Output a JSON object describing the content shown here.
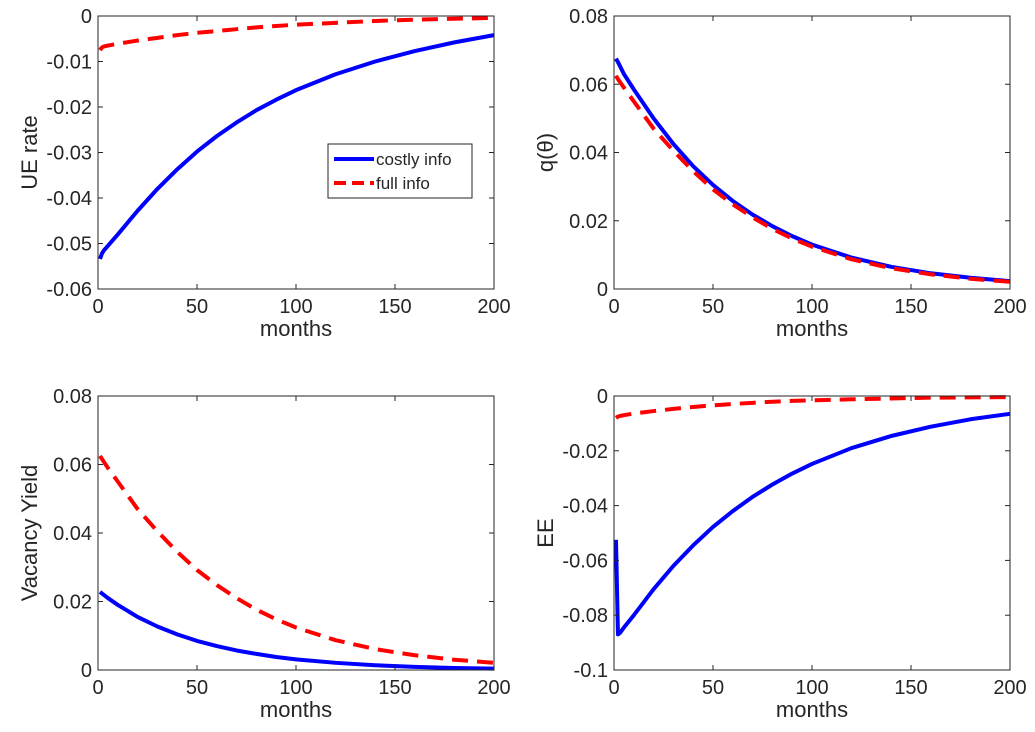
{
  "chart_data": [
    {
      "type": "line",
      "title": "",
      "xlabel": "months",
      "ylabel": "UE rate",
      "xlim": [
        0,
        200
      ],
      "ylim": [
        -0.06,
        0
      ],
      "xticks": [
        0,
        50,
        100,
        150,
        200
      ],
      "yticks": [
        -0.06,
        -0.05,
        -0.04,
        -0.03,
        -0.02,
        -0.01,
        0
      ],
      "xtick_labels": [
        "0",
        "50",
        "100",
        "150",
        "200"
      ],
      "ytick_labels": [
        "-0.06",
        "-0.05",
        "-0.04",
        "-0.03",
        "-0.02",
        "-0.01",
        "0"
      ],
      "grid": false,
      "legend": {
        "position": "center-right",
        "entries": [
          "costly info",
          "full info"
        ]
      },
      "series": [
        {
          "name": "costly info",
          "color": "#0000ff",
          "style": "solid",
          "x": [
            1,
            2,
            3,
            5,
            10,
            20,
            30,
            40,
            50,
            60,
            70,
            80,
            90,
            100,
            120,
            140,
            160,
            180,
            200
          ],
          "y": [
            -0.0534,
            -0.0522,
            -0.0515,
            -0.0505,
            -0.048,
            -0.0428,
            -0.038,
            -0.0337,
            -0.0298,
            -0.0264,
            -0.0234,
            -0.0207,
            -0.0184,
            -0.0163,
            -0.0128,
            -0.01,
            -0.0077,
            -0.0058,
            -0.0042
          ]
        },
        {
          "name": "full info",
          "color": "#ff0000",
          "style": "dashed",
          "x": [
            1,
            2,
            3,
            5,
            10,
            20,
            30,
            40,
            50,
            60,
            70,
            80,
            90,
            100,
            120,
            140,
            160,
            180,
            200
          ],
          "y": [
            -0.0075,
            -0.0069,
            -0.0067,
            -0.0065,
            -0.0061,
            -0.0054,
            -0.0048,
            -0.0042,
            -0.0037,
            -0.0033,
            -0.0029,
            -0.0025,
            -0.0022,
            -0.0019,
            -0.0015,
            -0.0011,
            -0.0008,
            -0.0006,
            -0.0004
          ]
        }
      ]
    },
    {
      "type": "line",
      "title": "",
      "xlabel": "months",
      "ylabel": "q(θ)",
      "xlim": [
        0,
        200
      ],
      "ylim": [
        0,
        0.08
      ],
      "xticks": [
        0,
        50,
        100,
        150,
        200
      ],
      "yticks": [
        0,
        0.02,
        0.04,
        0.06,
        0.08
      ],
      "xtick_labels": [
        "0",
        "50",
        "100",
        "150",
        "200"
      ],
      "ytick_labels": [
        "0",
        "0.02",
        "0.04",
        "0.06",
        "0.08"
      ],
      "grid": false,
      "series": [
        {
          "name": "costly info",
          "color": "#0000ff",
          "style": "solid",
          "x": [
            1,
            2,
            5,
            10,
            20,
            30,
            40,
            50,
            60,
            70,
            80,
            90,
            100,
            120,
            140,
            160,
            180,
            200
          ],
          "y": [
            0.0675,
            0.0665,
            0.063,
            0.0585,
            0.05,
            0.0425,
            0.036,
            0.0305,
            0.0258,
            0.0218,
            0.0184,
            0.0155,
            0.013,
            0.0092,
            0.0065,
            0.0046,
            0.0033,
            0.0023
          ]
        },
        {
          "name": "full info",
          "color": "#ff0000",
          "style": "dashed",
          "x": [
            1,
            2,
            5,
            10,
            20,
            30,
            40,
            50,
            60,
            70,
            80,
            90,
            100,
            120,
            140,
            160,
            180,
            200
          ],
          "y": [
            0.0625,
            0.0615,
            0.059,
            0.055,
            0.047,
            0.0405,
            0.0345,
            0.0292,
            0.0248,
            0.021,
            0.0176,
            0.0148,
            0.0124,
            0.0087,
            0.0061,
            0.0043,
            0.003,
            0.0021
          ]
        }
      ]
    },
    {
      "type": "line",
      "title": "",
      "xlabel": "months",
      "ylabel": "Vacancy Yield",
      "xlim": [
        0,
        200
      ],
      "ylim": [
        0,
        0.08
      ],
      "xticks": [
        0,
        50,
        100,
        150,
        200
      ],
      "yticks": [
        0,
        0.02,
        0.04,
        0.06,
        0.08
      ],
      "xtick_labels": [
        "0",
        "50",
        "100",
        "150",
        "200"
      ],
      "ytick_labels": [
        "0",
        "0.02",
        "0.04",
        "0.06",
        "0.08"
      ],
      "grid": false,
      "series": [
        {
          "name": "costly info",
          "color": "#0000ff",
          "style": "solid",
          "x": [
            1,
            5,
            10,
            20,
            30,
            40,
            50,
            60,
            70,
            80,
            90,
            100,
            120,
            140,
            160,
            180,
            200
          ],
          "y": [
            0.0228,
            0.021,
            0.019,
            0.0155,
            0.0127,
            0.0104,
            0.0085,
            0.007,
            0.0057,
            0.0047,
            0.0038,
            0.0031,
            0.0021,
            0.0014,
            0.0009,
            0.0006,
            0.0004
          ]
        },
        {
          "name": "full info",
          "color": "#ff0000",
          "style": "dashed",
          "x": [
            1,
            5,
            10,
            20,
            30,
            40,
            50,
            60,
            70,
            80,
            90,
            100,
            120,
            140,
            160,
            180,
            200
          ],
          "y": [
            0.0625,
            0.059,
            0.055,
            0.047,
            0.0405,
            0.0345,
            0.0292,
            0.0248,
            0.021,
            0.0176,
            0.0148,
            0.0124,
            0.0087,
            0.0061,
            0.0043,
            0.003,
            0.0021
          ]
        }
      ]
    },
    {
      "type": "line",
      "title": "",
      "xlabel": "months",
      "ylabel": "EE",
      "xlim": [
        0,
        200
      ],
      "ylim": [
        -0.1,
        0
      ],
      "xticks": [
        0,
        50,
        100,
        150,
        200
      ],
      "yticks": [
        -0.1,
        -0.08,
        -0.06,
        -0.04,
        -0.02,
        0
      ],
      "xtick_labels": [
        "0",
        "50",
        "100",
        "150",
        "200"
      ],
      "ytick_labels": [
        "-0.1",
        "-0.08",
        "-0.06",
        "-0.04",
        "-0.02",
        "0"
      ],
      "grid": false,
      "series": [
        {
          "name": "costly info",
          "color": "#0000ff",
          "style": "solid",
          "x": [
            1,
            2,
            3,
            5,
            10,
            20,
            30,
            40,
            50,
            60,
            70,
            80,
            90,
            100,
            120,
            140,
            160,
            180,
            200
          ],
          "y": [
            -0.0525,
            -0.087,
            -0.0865,
            -0.0845,
            -0.08,
            -0.0705,
            -0.062,
            -0.0545,
            -0.0478,
            -0.042,
            -0.0368,
            -0.0323,
            -0.0283,
            -0.0248,
            -0.019,
            -0.0146,
            -0.0112,
            -0.0085,
            -0.0065
          ]
        },
        {
          "name": "full info",
          "color": "#ff0000",
          "style": "dashed",
          "x": [
            1,
            2,
            3,
            5,
            10,
            20,
            30,
            40,
            50,
            60,
            70,
            80,
            90,
            100,
            120,
            140,
            160,
            180,
            200
          ],
          "y": [
            -0.008,
            -0.0075,
            -0.0073,
            -0.007,
            -0.0064,
            -0.0055,
            -0.0047,
            -0.004,
            -0.0034,
            -0.0029,
            -0.0025,
            -0.0021,
            -0.0018,
            -0.0016,
            -0.0012,
            -0.0009,
            -0.0006,
            -0.0005,
            -0.0004
          ]
        }
      ]
    }
  ]
}
